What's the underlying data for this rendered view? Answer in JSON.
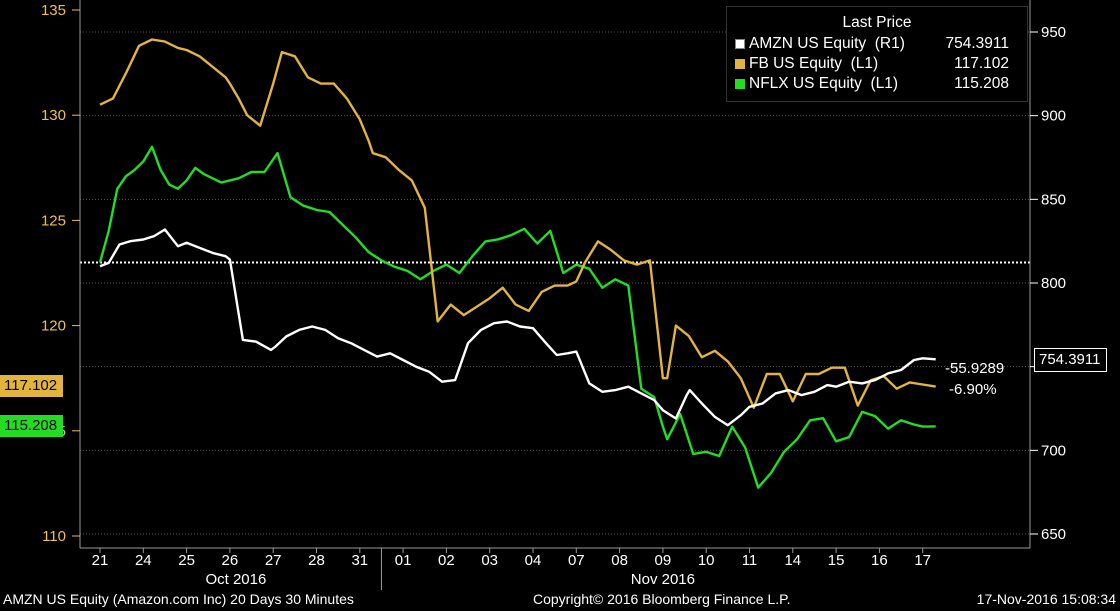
{
  "chart_data": {
    "type": "line",
    "x_tick_labels": [
      "21",
      "24",
      "25",
      "26",
      "27",
      "28",
      "31",
      "01",
      "02",
      "03",
      "04",
      "07",
      "08",
      "09",
      "10",
      "11",
      "14",
      "15",
      "16",
      "17"
    ],
    "month_labels": [
      {
        "label": "Oct 2016"
      },
      {
        "label": "Nov 2016"
      }
    ],
    "y_left": {
      "ticks": [
        110,
        115,
        120,
        125,
        130,
        135
      ],
      "ylim": [
        110,
        135
      ]
    },
    "y_right": {
      "ticks": [
        650,
        700,
        750,
        800,
        850,
        900,
        950
      ],
      "ylim": [
        650,
        950
      ]
    },
    "reference_line": {
      "axis": "left",
      "value": 123.0
    },
    "legend": {
      "title": "Last Price",
      "placement": "top-right",
      "entries": [
        {
          "name": "AMZN US Equity  (R1)",
          "value": "754.3911",
          "color": "#ffffff"
        },
        {
          "name": "FB US Equity  (L1)",
          "value": "117.102",
          "color": "#e3b43b"
        },
        {
          "name": "NFLX US Equity  (L1)",
          "value": "115.208",
          "color": "#22dd22"
        }
      ]
    },
    "last_value_tags": {
      "amzn": "754.3911",
      "fb": "117.102",
      "nflx": "115.208"
    },
    "changes": {
      "abs": "-55.9289",
      "pct": "-6.90%"
    },
    "series": [
      {
        "name": "AMZN US Equity  (R1)",
        "axis": "right",
        "color": "#ffffff",
        "x": [
          0,
          0.2,
          0.45,
          0.7,
          1,
          1.25,
          1.5,
          1.8,
          2,
          2.3,
          2.6,
          2.9,
          3,
          3.3,
          3.6,
          3.95,
          4.05,
          4.3,
          4.6,
          4.9,
          5.2,
          5.5,
          5.8,
          6.1,
          6.4,
          6.7,
          7,
          7.3,
          7.6,
          7.9,
          8.2,
          8.5,
          8.8,
          9.1,
          9.4,
          9.7,
          10,
          10.3,
          10.55,
          10.8,
          11,
          11.3,
          11.6,
          11.9,
          12.2,
          12.5,
          12.8,
          13,
          13.3,
          13.55,
          13.62,
          13.9,
          14.2,
          14.5,
          14.8,
          15,
          15.3,
          15.6,
          15.9,
          16.2,
          16.5,
          16.8,
          17,
          17.3,
          17.6,
          17.9,
          18.2,
          18.5,
          18.8,
          19,
          19.3
        ],
        "y": [
          810,
          812,
          823,
          825,
          826,
          828,
          832,
          822,
          824,
          821,
          818,
          816,
          814,
          766,
          765,
          760,
          762,
          768,
          772,
          774,
          772,
          767,
          764,
          760,
          756,
          758,
          754,
          750,
          747,
          741,
          742,
          764,
          772,
          776,
          777,
          774,
          773,
          764,
          757,
          758,
          759,
          740,
          735,
          736,
          738,
          734,
          730,
          724,
          719,
          733,
          736,
          728,
          720,
          715,
          721,
          726,
          728,
          734,
          736,
          733,
          735,
          739,
          738,
          741,
          740,
          742,
          746,
          748,
          754,
          755,
          754.39
        ]
      },
      {
        "name": "FB US Equity  (L1)",
        "axis": "left",
        "color": "#e3b43b",
        "x": [
          0,
          0.3,
          0.6,
          0.9,
          1.2,
          1.5,
          1.8,
          2,
          2.3,
          2.6,
          2.9,
          3,
          3.2,
          3.4,
          3.7,
          4,
          4.2,
          4.5,
          4.8,
          5.1,
          5.4,
          5.7,
          6,
          6.2,
          6.3,
          6.6,
          6.9,
          7.2,
          7.5,
          7.8,
          8.1,
          8.4,
          8.7,
          9,
          9.3,
          9.6,
          9.9,
          10.2,
          10.5,
          10.8,
          11,
          11.2,
          11.5,
          11.8,
          12.1,
          12.4,
          12.7,
          13,
          13.1,
          13.3,
          13.6,
          13.9,
          14.2,
          14.5,
          14.8,
          15.1,
          15.4,
          15.7,
          16,
          16.3,
          16.6,
          16.9,
          17.2,
          17.5,
          17.8,
          18.1,
          18.4,
          18.7,
          19,
          19.3
        ],
        "y": [
          130.5,
          130.8,
          132,
          133.3,
          133.6,
          133.5,
          133.2,
          133.1,
          132.8,
          132.3,
          131.8,
          131.5,
          130.8,
          130,
          129.5,
          131.5,
          133,
          132.8,
          131.8,
          131.5,
          131.5,
          130.8,
          129.8,
          128.8,
          128.2,
          128,
          127.4,
          126.9,
          125.6,
          120.2,
          121,
          120.5,
          120.9,
          121.3,
          121.8,
          121,
          120.7,
          121.6,
          121.9,
          121.9,
          122.1,
          123,
          124,
          123.6,
          123.1,
          122.9,
          123.1,
          117.5,
          117.5,
          120,
          119.5,
          118.5,
          118.8,
          118.3,
          117.5,
          116.1,
          117.7,
          117.7,
          116.4,
          117.7,
          117.7,
          118,
          118,
          116.2,
          117.4,
          117.6,
          117,
          117.3,
          117.2,
          117.1
        ]
      },
      {
        "name": "NFLX US Equity  (L1)",
        "axis": "left",
        "color": "#22dd22",
        "x": [
          0,
          0.2,
          0.4,
          0.6,
          0.8,
          1,
          1.2,
          1.4,
          1.6,
          1.8,
          2,
          2.2,
          2.4,
          2.6,
          2.8,
          3,
          3.2,
          3.5,
          3.8,
          4.1,
          4.4,
          4.7,
          5,
          5.3,
          5.6,
          5.9,
          6.2,
          6.5,
          6.8,
          7.1,
          7.4,
          7.7,
          8,
          8.3,
          8.6,
          8.9,
          9.2,
          9.5,
          9.8,
          10.1,
          10.4,
          10.7,
          11,
          11.3,
          11.6,
          11.9,
          12.2,
          12.5,
          12.8,
          13,
          13.1,
          13.4,
          13.7,
          14,
          14.3,
          14.6,
          14.9,
          15.2,
          15.5,
          15.8,
          16.1,
          16.4,
          16.7,
          17,
          17.3,
          17.6,
          17.9,
          18.2,
          18.5,
          18.8,
          19,
          19.3
        ],
        "y": [
          123,
          124.5,
          126.5,
          127.1,
          127.4,
          127.8,
          128.5,
          127.4,
          126.7,
          126.5,
          126.9,
          127.5,
          127.2,
          127,
          126.8,
          126.9,
          127,
          127.3,
          127.3,
          128.2,
          126.1,
          125.7,
          125.5,
          125.4,
          124.8,
          124.2,
          123.5,
          123.1,
          122.8,
          122.6,
          122.2,
          122.6,
          122.9,
          122.5,
          123.3,
          124,
          124.1,
          124.3,
          124.6,
          123.9,
          124.5,
          122.5,
          122.9,
          122.7,
          121.8,
          122.2,
          121.9,
          117,
          116.6,
          115.2,
          114.6,
          115.8,
          113.9,
          114,
          113.8,
          115.2,
          114.2,
          112.3,
          113,
          114,
          114.6,
          115.5,
          115.6,
          114.5,
          114.7,
          115.9,
          115.7,
          115.1,
          115.5,
          115.3,
          115.2,
          115.21
        ]
      }
    ]
  },
  "footer": {
    "left": "AMZN US Equity (Amazon.com Inc) 20 Days 30 Minutes",
    "center": "Copyright© 2016 Bloomberg Finance L.P.",
    "right": "17-Nov-2016 15:08:34"
  }
}
